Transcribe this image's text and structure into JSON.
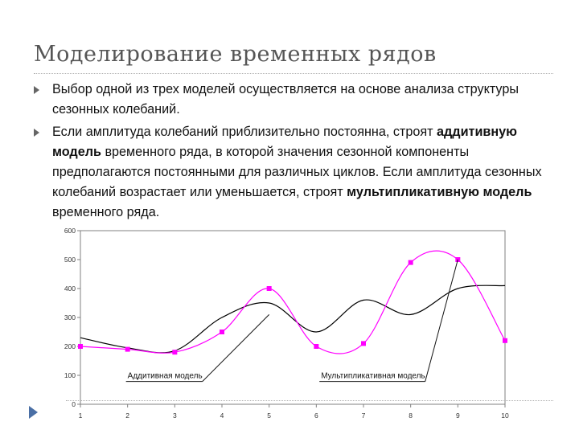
{
  "slide": {
    "title": "Моделирование временных рядов",
    "bullets": [
      {
        "text": "Выбор одной из трех моделей осуществляется на основе анализа структуры сезонных колебаний."
      },
      {
        "before": "Если амплитуда колебаний приблизительно постоянна, строят ",
        "em1": "аддитивную модель",
        "middle": " временного ряда, в которой значения сезонной компоненты предполагаются постоянными для различных циклов. Если амплитуда сезонных колебаний возрастает или уменьшается, строят ",
        "em2": "мультипликативную модель",
        "after": " временного ряда."
      }
    ]
  },
  "chart_data": {
    "type": "line",
    "x": [
      1,
      2,
      3,
      4,
      5,
      6,
      7,
      8,
      9,
      10
    ],
    "xtick_labels": [
      "1",
      "2",
      "3",
      "4",
      "5",
      "6",
      "7",
      "8",
      "9",
      "10"
    ],
    "ylim": [
      0,
      600
    ],
    "yticks": [
      0,
      100,
      200,
      300,
      400,
      500,
      600
    ],
    "grid": false,
    "series": [
      {
        "style": "smooth",
        "color": "#000000",
        "marker": "none",
        "values": [
          230,
          195,
          185,
          300,
          350,
          250,
          360,
          310,
          400,
          410
        ]
      },
      {
        "style": "smooth",
        "color": "#ff00ff",
        "marker": "square",
        "values": [
          200,
          190,
          180,
          250,
          400,
          200,
          210,
          490,
          500,
          220
        ]
      }
    ],
    "annotations": [
      {
        "text": "Аддитивная модель",
        "x": 2,
        "y": 90,
        "arrow_to": [
          5,
          310
        ]
      },
      {
        "text": "Мультипликативная модель",
        "x": 6.1,
        "y": 90,
        "arrow_to": [
          9,
          500
        ]
      }
    ]
  }
}
